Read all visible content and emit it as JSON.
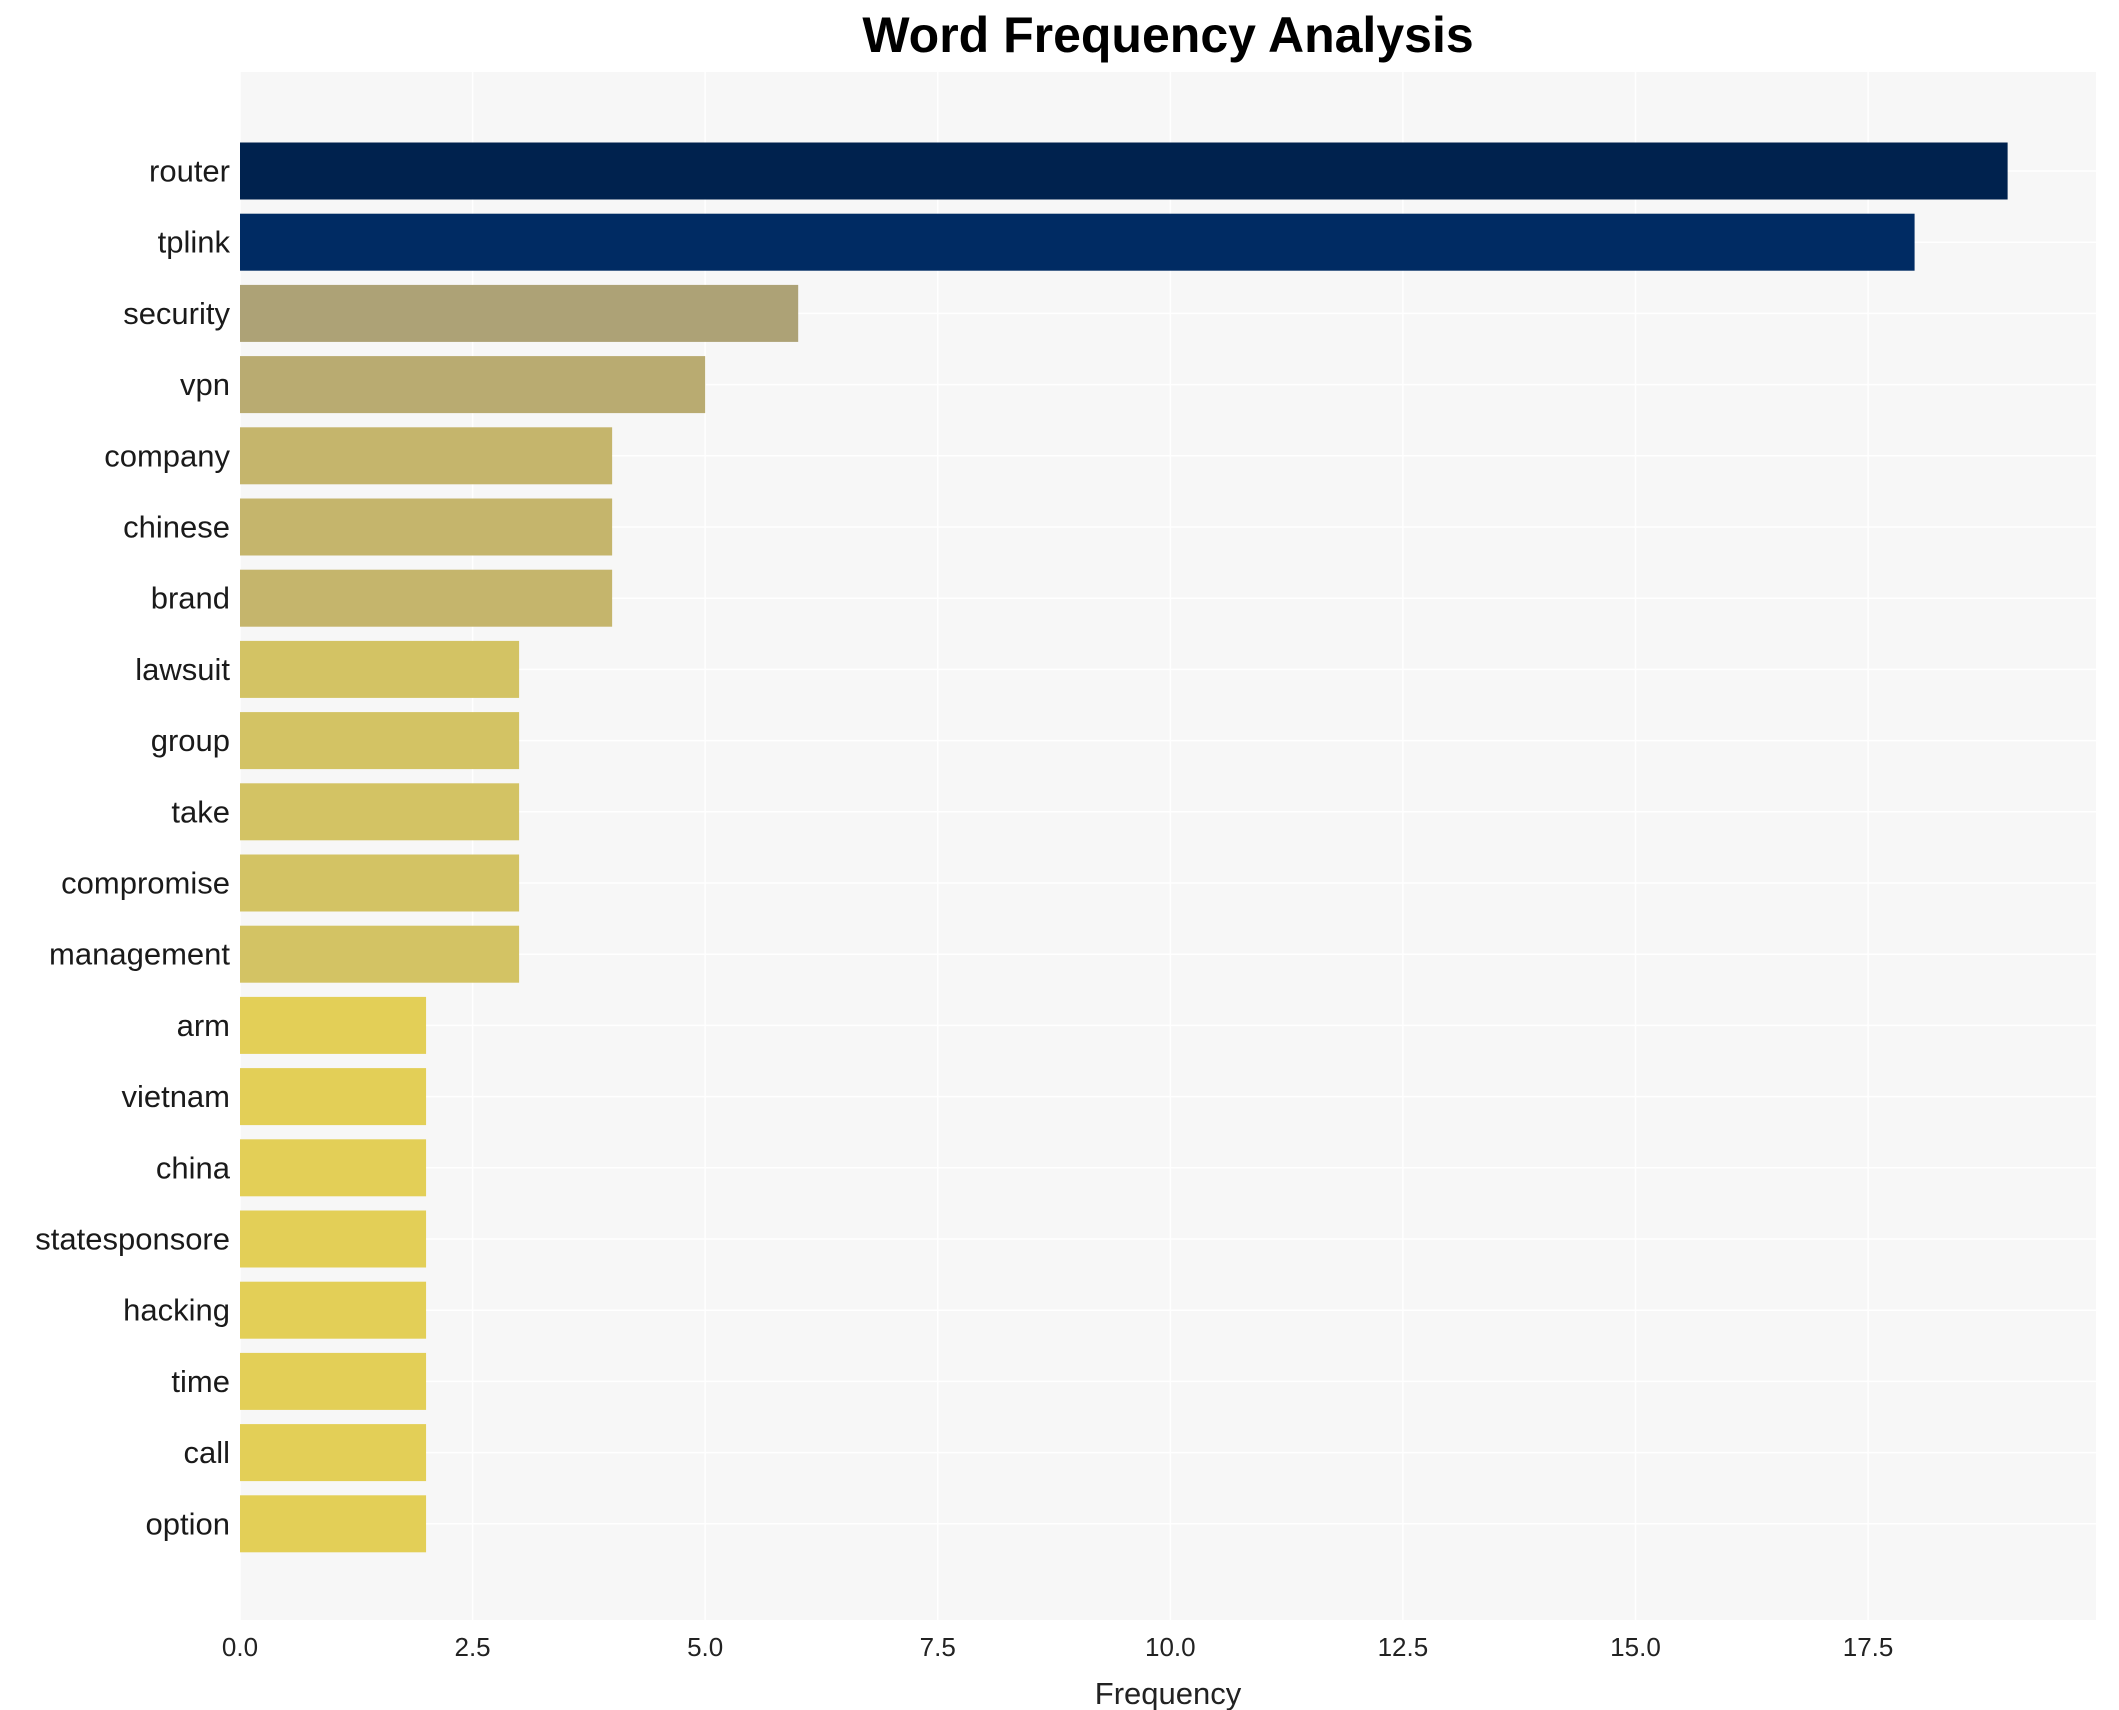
{
  "chart_data": {
    "type": "bar",
    "orientation": "horizontal",
    "title": "Word Frequency Analysis",
    "xlabel": "Frequency",
    "ylabel": "",
    "categories": [
      "router",
      "tplink",
      "security",
      "vpn",
      "company",
      "chinese",
      "brand",
      "lawsuit",
      "group",
      "take",
      "compromise",
      "management",
      "arm",
      "vietnam",
      "china",
      "statesponsore",
      "hacking",
      "time",
      "call",
      "option"
    ],
    "values": [
      19,
      18,
      6,
      5,
      4,
      4,
      4,
      3,
      3,
      3,
      3,
      3,
      2,
      2,
      2,
      2,
      2,
      2,
      2,
      2
    ],
    "xlim": [
      0,
      19.95
    ],
    "xticks": [
      0.0,
      2.5,
      5.0,
      7.5,
      10.0,
      12.5,
      15.0,
      17.5
    ],
    "xtick_labels": [
      "0.0",
      "2.5",
      "5.0",
      "7.5",
      "10.0",
      "12.5",
      "15.0",
      "17.5"
    ],
    "colors": {
      "background": "#ffffff",
      "plot_background": "#f7f7f7",
      "grid": "#ffffff",
      "bars": [
        "#00224e",
        "#002b63",
        "#ada276",
        "#b9ab71",
        "#c5b56c",
        "#c5b56c",
        "#c5b56c",
        "#d3c364",
        "#d3c364",
        "#d3c364",
        "#d3c364",
        "#d3c364",
        "#e3cf57",
        "#e3cf57",
        "#e3cf57",
        "#e3cf57",
        "#e3cf57",
        "#e3cf57",
        "#e3cf57",
        "#e3cf57"
      ]
    },
    "grid": true,
    "legend": "none"
  }
}
